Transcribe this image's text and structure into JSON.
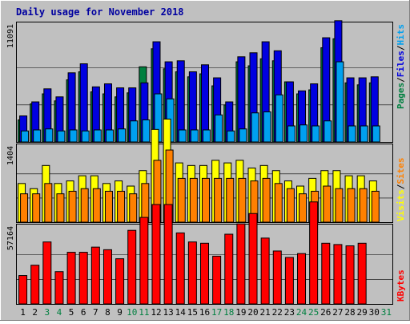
{
  "title": "Daily usage for November 2018",
  "colors": {
    "hits": "#00A0F0",
    "files": "#0000E0",
    "pages": "#008040",
    "visits": "#FFFF00",
    "sites": "#FF8000",
    "kbytes": "#FF0000",
    "title": "#0000A0",
    "weekend": "#008040",
    "background": "#C0C0C0"
  },
  "chart_data": {
    "type": "bar",
    "x": [
      1,
      2,
      3,
      4,
      5,
      6,
      7,
      8,
      9,
      10,
      11,
      12,
      13,
      14,
      15,
      16,
      17,
      18,
      19,
      20,
      21,
      22,
      23,
      24,
      25,
      26,
      27,
      28,
      29,
      30,
      31
    ],
    "weekend_days": [
      3,
      4,
      10,
      11,
      17,
      18,
      24,
      25,
      31
    ],
    "panels": [
      {
        "id": "top",
        "ymax_label": "11091",
        "ymax": 11091,
        "legend": [
          "Pages",
          "Files",
          "Hits"
        ],
        "series": [
          {
            "name": "Hits",
            "values": [
              2200,
              3800,
              4800,
              4100,
              6200,
              7000,
              5000,
              4800,
              4500,
              4900,
              7500,
              9300,
              7300,
              7000,
              6500,
              6800,
              5600,
              3700,
              8000,
              7600,
              8300,
              8100,
              6000,
              4800,
              5200,
              9400,
              10300,
              5900,
              5700,
              5900,
              0
            ]
          },
          {
            "name": "Files",
            "values": [
              1100,
              1200,
              1300,
              1100,
              1200,
              1100,
              1200,
              1200,
              1300,
              2100,
              2200,
              4800,
              4300,
              1200,
              1200,
              1200,
              2700,
              1100,
              1300,
              2900,
              3000,
              4700,
              1600,
              1700,
              1600,
              2100,
              8000,
              1600,
              1600,
              1600,
              0
            ]
          },
          {
            "name": "Pages",
            "values": [
              2600,
              4000,
              5300,
              4500,
              6900,
              7800,
              5500,
              5800,
              5400,
              5400,
              5900,
              10000,
              8000,
              8100,
              7000,
              7700,
              6400,
              4000,
              8500,
              8900,
              10000,
              9100,
              6000,
              5100,
              5800,
              10400,
              12100,
              6400,
              6400,
              6500,
              0
            ]
          }
        ]
      },
      {
        "id": "middle",
        "ymax_label": "1404",
        "ymax": 1404,
        "legend": [
          "Visits",
          "Sites"
        ],
        "series": [
          {
            "name": "Visits",
            "values": [
              750,
              650,
              1100,
              750,
              800,
              900,
              900,
              750,
              800,
              700,
              1000,
              1800,
              2000,
              1150,
              1100,
              1100,
              1200,
              1150,
              1200,
              1050,
              1100,
              1000,
              800,
              700,
              850,
              1000,
              1000,
              900,
              900,
              800,
              0
            ]
          },
          {
            "name": "Sites",
            "values": [
              550,
              550,
              750,
              550,
              600,
              650,
              650,
              600,
              600,
              550,
              750,
              1200,
              1400,
              850,
              850,
              850,
              850,
              850,
              850,
              800,
              850,
              750,
              650,
              550,
              600,
              700,
              650,
              650,
              650,
              600,
              0
            ]
          }
        ]
      },
      {
        "id": "bottom",
        "ymax_label": "57164",
        "ymax": 57164,
        "legend": [
          "KBytes"
        ],
        "series": [
          {
            "name": "KBytes",
            "values": [
              22000,
              30000,
              48000,
              25000,
              40000,
              40000,
              44000,
              42000,
              35000,
              57000,
              67000,
              77000,
              77000,
              55000,
              48000,
              47000,
              37000,
              54000,
              62000,
              70000,
              51000,
              41000,
              36000,
              39000,
              79000,
              47000,
              46000,
              45000,
              47000,
              0,
              0
            ]
          }
        ]
      }
    ]
  }
}
